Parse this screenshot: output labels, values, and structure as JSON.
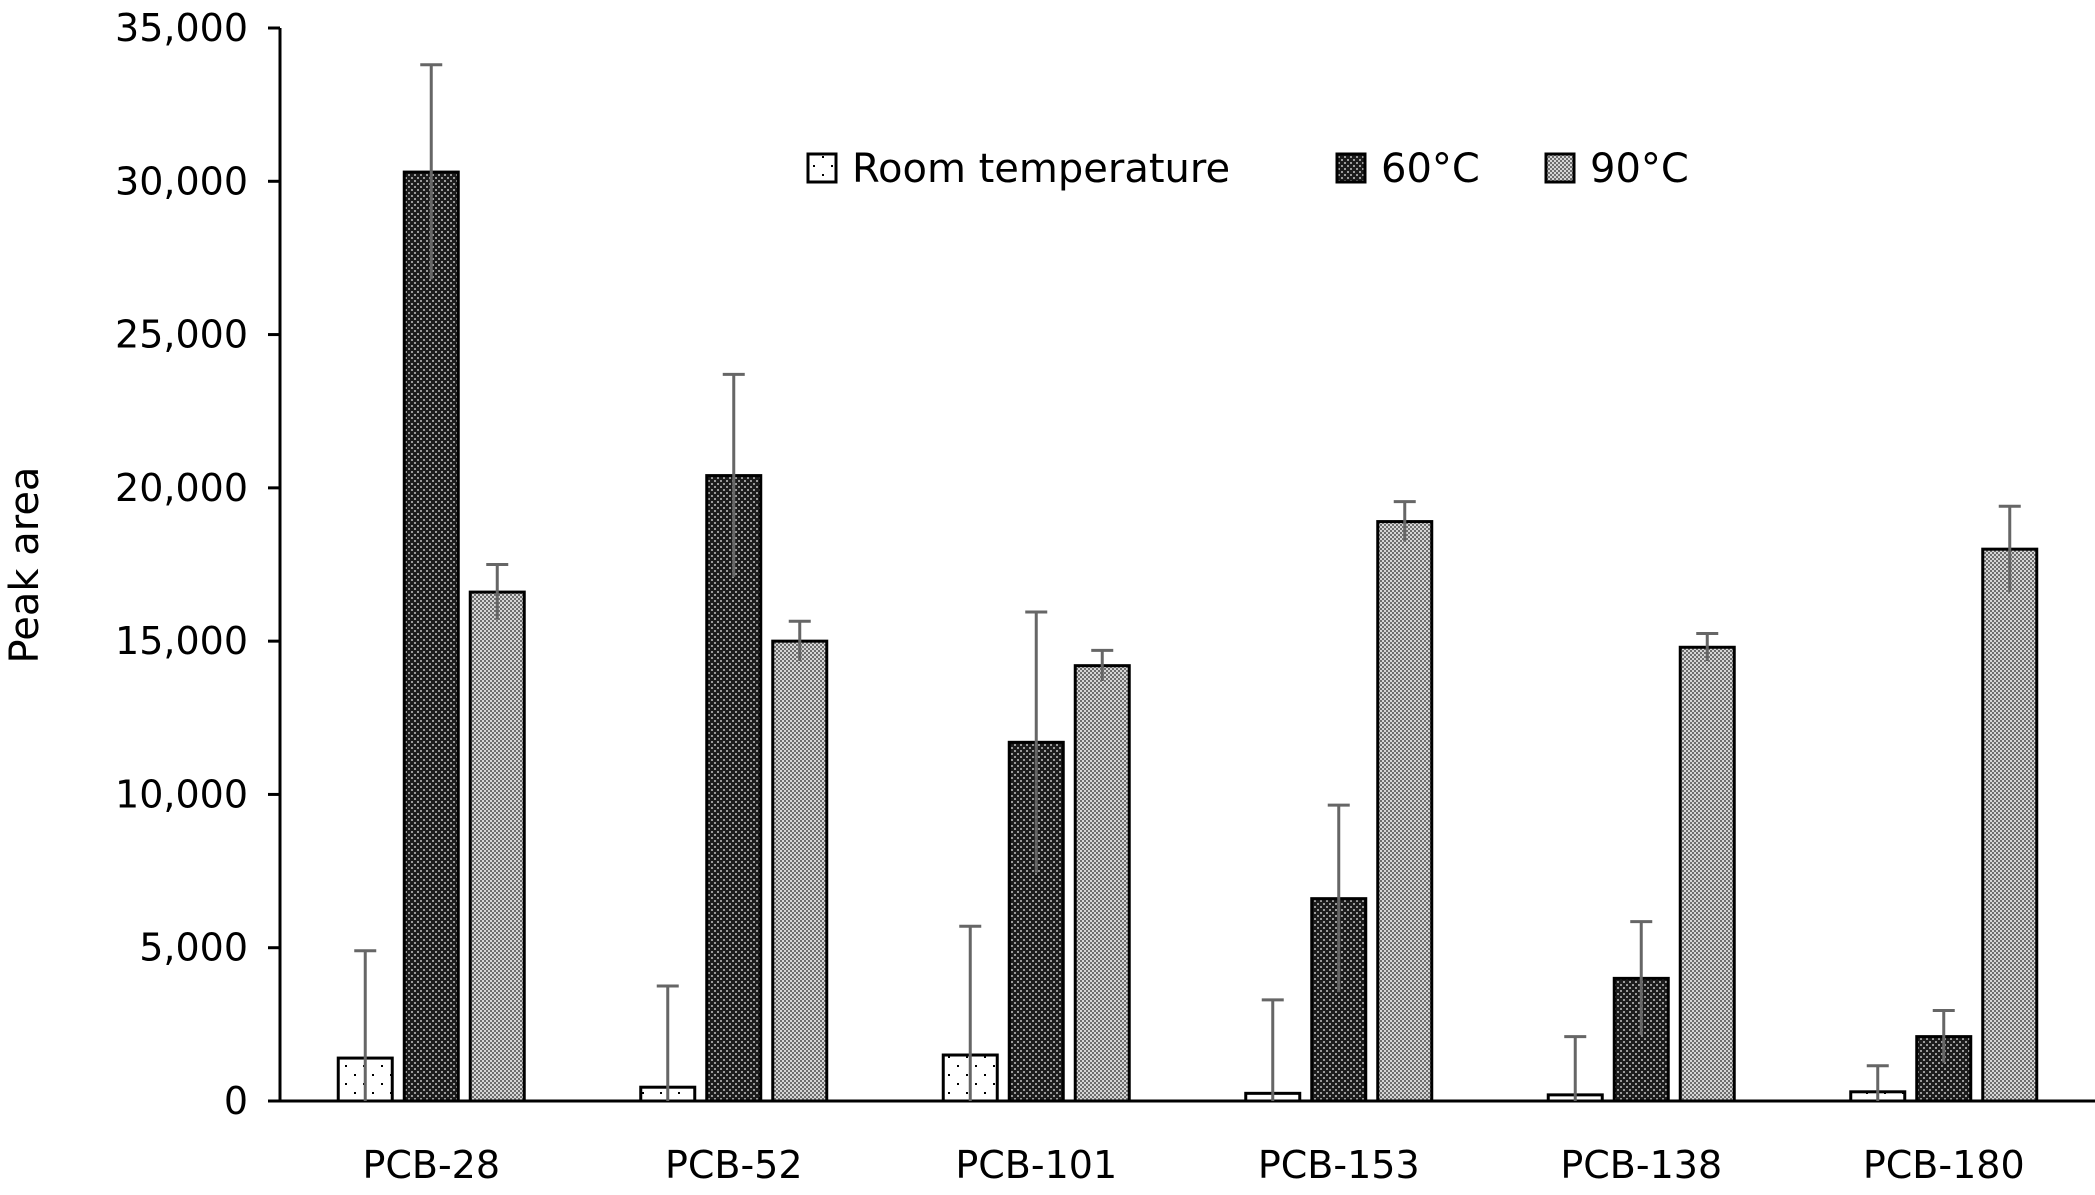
{
  "chart_data": {
    "type": "bar",
    "title": "",
    "xlabel": "",
    "ylabel": "Peak area",
    "ylim": [
      0,
      35000
    ],
    "yticks": [
      0,
      5000,
      10000,
      15000,
      20000,
      25000,
      30000,
      35000
    ],
    "ytick_labels": [
      "0",
      "5,000",
      "10,000",
      "15,000",
      "20,000",
      "25,000",
      "30,000",
      "35,000"
    ],
    "categories": [
      "PCB-28",
      "PCB-52",
      "PCB-101",
      "PCB-153",
      "PCB-138",
      "PCB-180"
    ],
    "legend_position": "top-center",
    "series": [
      {
        "name": "Room temperature",
        "pattern": "sparse-dots",
        "values": [
          1400,
          450,
          1500,
          250,
          200,
          300
        ],
        "errors": [
          3500,
          3300,
          4200,
          3050,
          1900,
          850
        ]
      },
      {
        "name": "60°C",
        "pattern": "dense-dark",
        "values": [
          30300,
          20400,
          11700,
          6600,
          4000,
          2100
        ],
        "errors": [
          3500,
          3300,
          4250,
          3050,
          1850,
          850
        ]
      },
      {
        "name": "90°C",
        "pattern": "gray-check",
        "values": [
          16600,
          15000,
          14200,
          18900,
          14800,
          18000
        ],
        "errors": [
          900,
          650,
          500,
          650,
          450,
          1400
        ]
      }
    ]
  }
}
